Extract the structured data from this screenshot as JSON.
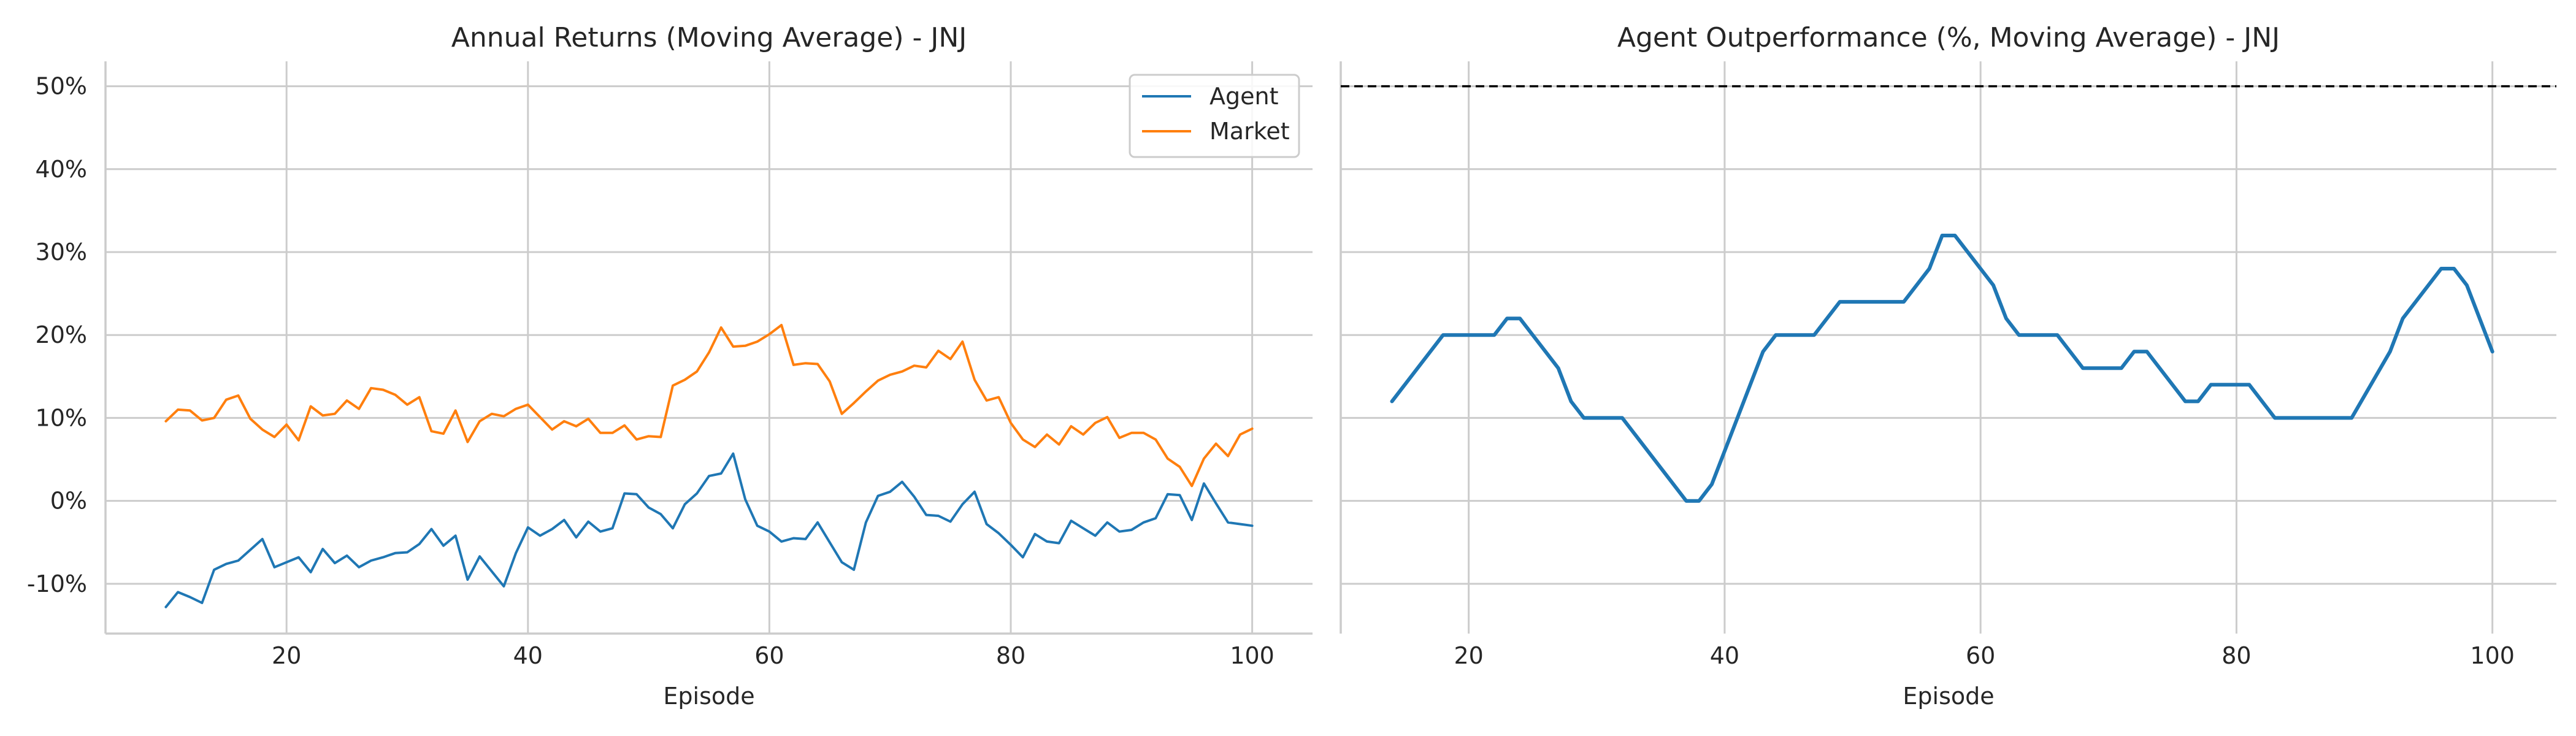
{
  "chart_data": [
    {
      "type": "line",
      "title": "Annual Returns (Moving Average) - JNJ",
      "xlabel": "Episode",
      "ylabel": "",
      "xlim": [
        5,
        105
      ],
      "ylim": [
        -16,
        53
      ],
      "x_ticks": [
        20,
        40,
        60,
        80,
        100
      ],
      "x_tick_labels": [
        "20",
        "40",
        "60",
        "80",
        "100"
      ],
      "y_ticks": [
        -10,
        0,
        10,
        20,
        30,
        40,
        50
      ],
      "y_tick_labels": [
        "-10%",
        "0%",
        "10%",
        "20%",
        "30%",
        "40%",
        "50%"
      ],
      "grid": true,
      "legend_position": "top-right",
      "x": [
        10,
        11,
        12,
        13,
        14,
        15,
        16,
        17,
        18,
        19,
        20,
        21,
        22,
        23,
        24,
        25,
        26,
        27,
        28,
        29,
        30,
        31,
        32,
        33,
        34,
        35,
        36,
        37,
        38,
        39,
        40,
        41,
        42,
        43,
        44,
        45,
        46,
        47,
        48,
        49,
        50,
        51,
        52,
        53,
        54,
        55,
        56,
        57,
        58,
        59,
        60,
        61,
        62,
        63,
        64,
        65,
        66,
        67,
        68,
        69,
        70,
        71,
        72,
        73,
        74,
        75,
        76,
        77,
        78,
        79,
        80,
        81,
        82,
        83,
        84,
        85,
        86,
        87,
        88,
        89,
        90,
        91,
        92,
        93,
        94,
        95,
        96,
        97,
        98,
        99,
        100
      ],
      "series": [
        {
          "name": "Agent",
          "color": "#1f77b4",
          "values": [
            -12.8,
            -11.0,
            -11.6,
            -12.3,
            -8.3,
            -7.6,
            -7.2,
            -5.9,
            -4.6,
            -8.0,
            -7.4,
            -6.8,
            -8.6,
            -5.8,
            -7.5,
            -6.6,
            -8.0,
            -7.2,
            -6.8,
            -6.3,
            -6.2,
            -5.2,
            -3.4,
            -5.4,
            -4.2,
            -9.5,
            -6.7,
            -8.5,
            -10.3,
            -6.3,
            -3.2,
            -4.2,
            -3.4,
            -2.3,
            -4.4,
            -2.5,
            -3.7,
            -3.3,
            0.9,
            0.8,
            -0.8,
            -1.6,
            -3.3,
            -0.4,
            0.9,
            3.0,
            3.3,
            5.7,
            0.2,
            -3.0,
            -3.7,
            -4.9,
            -4.5,
            -4.6,
            -2.6,
            -5.0,
            -7.4,
            -8.3,
            -2.6,
            0.6,
            1.1,
            2.3,
            0.5,
            -1.7,
            -1.8,
            -2.5,
            -0.4,
            1.1,
            -2.8,
            -3.9,
            -5.3,
            -6.8,
            -4.0,
            -4.9,
            -5.1,
            -2.4,
            -3.3,
            -4.2,
            -2.6,
            -3.7,
            -3.5,
            -2.6,
            -2.1,
            0.8,
            0.7,
            -2.3,
            2.1,
            -0.3,
            -2.6,
            -2.8,
            -3.0
          ]
        },
        {
          "name": "Market",
          "color": "#ff7f0e",
          "values": [
            9.6,
            11.0,
            10.9,
            9.7,
            10.0,
            12.2,
            12.7,
            9.9,
            8.6,
            7.7,
            9.2,
            7.3,
            11.4,
            10.3,
            10.5,
            12.1,
            11.1,
            13.6,
            13.4,
            12.8,
            11.6,
            12.5,
            8.4,
            8.1,
            10.9,
            7.1,
            9.6,
            10.5,
            10.2,
            11.1,
            11.6,
            10.1,
            8.6,
            9.6,
            9.0,
            9.9,
            8.2,
            8.2,
            9.1,
            7.4,
            7.8,
            7.7,
            13.9,
            14.6,
            15.6,
            17.9,
            20.9,
            18.6,
            18.7,
            19.2,
            20.1,
            21.2,
            16.4,
            16.6,
            16.5,
            14.4,
            10.5,
            11.8,
            13.2,
            14.5,
            15.2,
            15.6,
            16.3,
            16.1,
            18.1,
            17.1,
            19.2,
            14.6,
            12.1,
            12.5,
            9.4,
            7.4,
            6.5,
            8.0,
            6.8,
            9.0,
            8.0,
            9.4,
            10.1,
            7.6,
            8.2,
            8.2,
            7.4,
            5.1,
            4.1,
            1.8,
            5.1,
            6.9,
            5.4,
            8.0,
            8.7
          ]
        }
      ]
    },
    {
      "type": "line",
      "title": "Agent Outperformance (%, Moving Average) - JNJ",
      "xlabel": "Episode",
      "ylabel": "",
      "xlim": [
        10,
        105
      ],
      "ylim": [
        -16,
        53
      ],
      "x_ticks": [
        20,
        40,
        60,
        80,
        100
      ],
      "x_tick_labels": [
        "20",
        "40",
        "60",
        "80",
        "100"
      ],
      "grid": true,
      "reference_line": {
        "y": 50,
        "style": "dashed",
        "color": "#000000"
      },
      "x": [
        14,
        18,
        22,
        23,
        24,
        27,
        28,
        29,
        32,
        37,
        38,
        39,
        43,
        44,
        47,
        49,
        53,
        54,
        56,
        57,
        58,
        61,
        62,
        63,
        66,
        68,
        71,
        72,
        73,
        76,
        77,
        78,
        81,
        83,
        89,
        92,
        93,
        96,
        97,
        98,
        100
      ],
      "series": [
        {
          "color": "#1f77b4",
          "values": [
            12,
            20,
            20,
            22,
            22,
            16,
            12,
            10,
            10,
            0,
            0,
            2,
            18,
            20,
            20,
            24,
            24,
            24,
            28,
            32,
            32,
            26,
            22,
            20,
            20,
            16,
            16,
            18,
            18,
            12,
            12,
            14,
            14,
            10,
            10,
            18,
            22,
            28,
            28,
            26,
            18
          ]
        }
      ]
    }
  ]
}
